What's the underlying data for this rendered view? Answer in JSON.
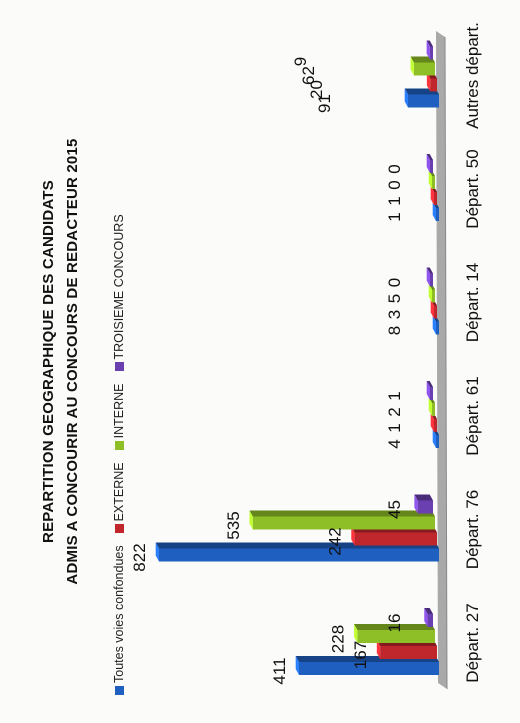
{
  "chart_data": {
    "type": "bar",
    "title": "REPARTITION GEOGRAPHIQUE DES CANDIDATS",
    "subtitle": "ADMIS A CONCOURIR AU CONCOURS DE REDACTEUR 2015",
    "categories": [
      "Départ. 27",
      "Départ. 76",
      "Départ. 61",
      "Départ. 14",
      "Départ. 50",
      "Autres départ."
    ],
    "series": [
      {
        "name": "Toutes voies confondues",
        "color": "#1f5fbf",
        "values": [
          411,
          822,
          4,
          8,
          1,
          91
        ]
      },
      {
        "name": "EXTERNE",
        "color": "#c0272d",
        "values": [
          167,
          242,
          1,
          3,
          1,
          20
        ]
      },
      {
        "name": "INTERNE",
        "color": "#8fbf26",
        "values": [
          228,
          535,
          2,
          5,
          0,
          62
        ]
      },
      {
        "name": "TROISIEME CONCOURS",
        "color": "#6a3fb0",
        "values": [
          16,
          45,
          1,
          0,
          0,
          9
        ]
      }
    ],
    "legend_position": "top",
    "grid": false
  }
}
